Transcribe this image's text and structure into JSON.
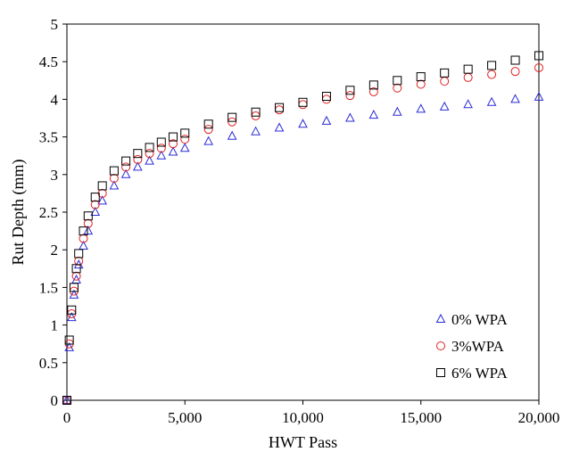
{
  "chart_data": {
    "type": "scatter",
    "title": "",
    "xlabel": "HWT Pass",
    "ylabel": "Rut Depth (mm)",
    "xlim": [
      0,
      20000
    ],
    "ylim": [
      0,
      5
    ],
    "x_ticks": [
      0,
      5000,
      10000,
      15000,
      20000
    ],
    "x_tick_labels": [
      "0",
      "5,000",
      "10,000",
      "15,000",
      "20,000"
    ],
    "y_ticks": [
      0,
      0.5,
      1,
      1.5,
      2,
      2.5,
      3,
      3.5,
      4,
      4.5,
      5
    ],
    "y_tick_labels": [
      "0",
      "0.5",
      "1",
      "1.5",
      "2",
      "2.5",
      "3",
      "3.5",
      "4",
      "4.5",
      "5"
    ],
    "grid": false,
    "legend_position": "bottom-right",
    "series": [
      {
        "name": "0% WPA",
        "marker": "triangle",
        "color": "#2b2bd6",
        "x": [
          0,
          100,
          200,
          300,
          400,
          500,
          700,
          900,
          1200,
          1500,
          2000,
          2500,
          3000,
          3500,
          4000,
          4500,
          5000,
          6000,
          7000,
          8000,
          9000,
          10000,
          11000,
          12000,
          13000,
          14000,
          15000,
          16000,
          17000,
          18000,
          19000,
          20000
        ],
        "y": [
          0,
          0.7,
          1.1,
          1.4,
          1.6,
          1.8,
          2.05,
          2.25,
          2.5,
          2.65,
          2.85,
          3.0,
          3.1,
          3.18,
          3.25,
          3.3,
          3.35,
          3.44,
          3.51,
          3.57,
          3.62,
          3.67,
          3.71,
          3.75,
          3.79,
          3.83,
          3.87,
          3.9,
          3.93,
          3.96,
          4.0,
          4.03
        ]
      },
      {
        "name": "3%WPA",
        "marker": "circle",
        "color": "#e02020",
        "x": [
          0,
          100,
          200,
          300,
          400,
          500,
          700,
          900,
          1200,
          1500,
          2000,
          2500,
          3000,
          3500,
          4000,
          4500,
          5000,
          6000,
          7000,
          8000,
          9000,
          10000,
          11000,
          12000,
          13000,
          14000,
          15000,
          16000,
          17000,
          18000,
          19000,
          20000
        ],
        "y": [
          0,
          0.75,
          1.15,
          1.45,
          1.65,
          1.85,
          2.15,
          2.35,
          2.6,
          2.75,
          2.95,
          3.1,
          3.2,
          3.28,
          3.35,
          3.41,
          3.47,
          3.6,
          3.7,
          3.78,
          3.86,
          3.93,
          4.0,
          4.05,
          4.1,
          4.15,
          4.2,
          4.24,
          4.29,
          4.33,
          4.37,
          4.42
        ]
      },
      {
        "name": "6% WPA",
        "marker": "square",
        "color": "#000000",
        "x": [
          0,
          100,
          200,
          300,
          400,
          500,
          700,
          900,
          1200,
          1500,
          2000,
          2500,
          3000,
          3500,
          4000,
          4500,
          5000,
          6000,
          7000,
          8000,
          9000,
          10000,
          11000,
          12000,
          13000,
          14000,
          15000,
          16000,
          17000,
          18000,
          19000,
          20000
        ],
        "y": [
          0,
          0.8,
          1.2,
          1.5,
          1.75,
          1.95,
          2.25,
          2.45,
          2.7,
          2.85,
          3.05,
          3.18,
          3.28,
          3.36,
          3.43,
          3.5,
          3.55,
          3.67,
          3.76,
          3.83,
          3.89,
          3.96,
          4.04,
          4.12,
          4.19,
          4.25,
          4.3,
          4.35,
          4.4,
          4.45,
          4.52,
          4.58
        ]
      }
    ]
  }
}
